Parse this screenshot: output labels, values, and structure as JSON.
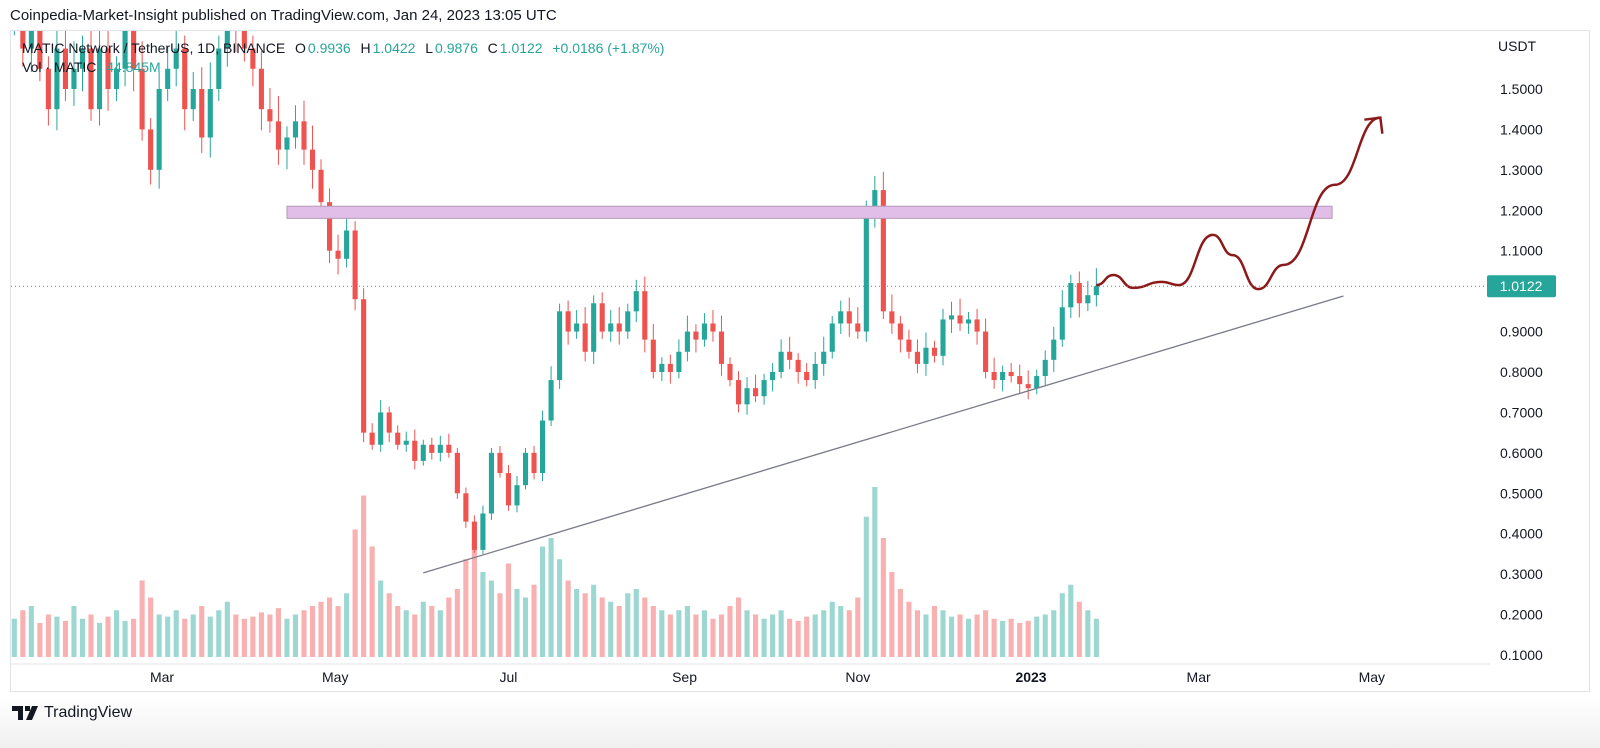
{
  "published": "Coinpedia-Market-Insight published on TradingView.com, Jan 24, 2023 13:05 UTC",
  "brand": "TradingView",
  "legend": {
    "symbol": "MATIC Network / TetherUS, 1D, BINANCE",
    "o_label": "O",
    "o": "0.9936",
    "h_label": "H",
    "h": "1.0422",
    "l_label": "L",
    "l": "0.9876",
    "c_label": "C",
    "c": "1.0122",
    "change": "+0.0186 (+1.87%)",
    "vol_label": "Vol · MATIC",
    "vol": "44.845M"
  },
  "colors": {
    "up": "#26a69a",
    "down": "#ef5350",
    "zone": "#e1bee7",
    "projection": "#8b1a1a",
    "trendline": "#787b86"
  },
  "chart_data": {
    "type": "candlestick",
    "currency": "USDT",
    "last_price": "1.0122",
    "ylim": [
      0.1,
      1.55
    ],
    "y_ticks": [
      "1.5000",
      "1.4000",
      "1.3000",
      "1.2000",
      "1.1000",
      "0.9000",
      "0.8000",
      "0.7000",
      "0.6000",
      "0.5000",
      "0.4000",
      "0.3000",
      "0.2000",
      "0.1000"
    ],
    "x_ticks": [
      {
        "label": "Mar",
        "date": "2022-03-01"
      },
      {
        "label": "May",
        "date": "2022-05-01"
      },
      {
        "label": "Jul",
        "date": "2022-07-01"
      },
      {
        "label": "Sep",
        "date": "2022-09-01"
      },
      {
        "label": "Nov",
        "date": "2022-11-01"
      },
      {
        "label": "2023",
        "date": "2023-01-01"
      },
      {
        "label": "Mar",
        "date": "2023-03-01"
      },
      {
        "label": "May",
        "date": "2023-05-01"
      }
    ],
    "start_date": "2022-01-08",
    "interval_days": 3,
    "close": [
      1.7,
      1.6,
      1.8,
      1.55,
      1.45,
      1.6,
      1.5,
      1.55,
      1.6,
      1.45,
      1.6,
      1.5,
      1.55,
      1.65,
      1.55,
      1.4,
      1.3,
      1.5,
      1.55,
      1.6,
      1.45,
      1.5,
      1.38,
      1.5,
      1.6,
      1.7,
      1.65,
      1.6,
      1.55,
      1.45,
      1.42,
      1.35,
      1.38,
      1.42,
      1.35,
      1.3,
      1.22,
      1.1,
      1.08,
      1.15,
      0.98,
      0.65,
      0.62,
      0.7,
      0.65,
      0.62,
      0.63,
      0.58,
      0.62,
      0.6,
      0.62,
      0.6,
      0.5,
      0.43,
      0.36,
      0.45,
      0.6,
      0.55,
      0.47,
      0.52,
      0.6,
      0.55,
      0.68,
      0.78,
      0.95,
      0.9,
      0.92,
      0.85,
      0.97,
      0.9,
      0.92,
      0.9,
      0.95,
      1.0,
      0.88,
      0.8,
      0.82,
      0.8,
      0.85,
      0.9,
      0.88,
      0.92,
      0.9,
      0.82,
      0.78,
      0.72,
      0.76,
      0.74,
      0.78,
      0.8,
      0.85,
      0.83,
      0.8,
      0.78,
      0.82,
      0.85,
      0.92,
      0.95,
      0.92,
      0.9,
      1.2,
      1.25,
      0.95,
      0.92,
      0.88,
      0.85,
      0.82,
      0.86,
      0.84,
      0.93,
      0.94,
      0.92,
      0.93,
      0.9,
      0.8,
      0.78,
      0.8,
      0.79,
      0.77,
      0.76,
      0.79,
      0.83,
      0.88,
      0.96,
      1.02,
      0.97,
      0.99,
      1.0122
    ],
    "volume_m": [
      90,
      110,
      120,
      80,
      100,
      95,
      85,
      120,
      90,
      100,
      80,
      95,
      110,
      85,
      90,
      180,
      140,
      100,
      95,
      110,
      90,
      100,
      120,
      95,
      110,
      130,
      100,
      90,
      95,
      105,
      100,
      115,
      90,
      100,
      110,
      120,
      130,
      140,
      120,
      150,
      300,
      380,
      260,
      180,
      150,
      120,
      110,
      100,
      130,
      120,
      110,
      140,
      160,
      230,
      270,
      200,
      180,
      150,
      220,
      160,
      140,
      170,
      260,
      280,
      230,
      180,
      160,
      150,
      170,
      140,
      130,
      120,
      150,
      160,
      140,
      120,
      110,
      100,
      110,
      120,
      100,
      110,
      90,
      100,
      120,
      140,
      110,
      100,
      90,
      100,
      110,
      90,
      85,
      95,
      100,
      110,
      130,
      120,
      110,
      140,
      330,
      400,
      280,
      200,
      160,
      130,
      110,
      100,
      120,
      110,
      95,
      100,
      90,
      100,
      110,
      90,
      85,
      90,
      80,
      85,
      95,
      100,
      110,
      150,
      170,
      130,
      110,
      90
    ],
    "annotations": {
      "resistance_zone": {
        "from": "2022-04-14",
        "to": "2023-04-17",
        "price_low": 1.18,
        "price_high": 1.21
      },
      "trendline": [
        {
          "date": "2022-06-01",
          "price": 0.303
        },
        {
          "date": "2023-04-21",
          "price": 0.988
        }
      ],
      "projection": [
        {
          "date": "2023-01-24",
          "price": 1.015
        },
        {
          "date": "2023-01-30",
          "price": 1.04
        },
        {
          "date": "2023-02-06",
          "price": 1.008
        },
        {
          "date": "2023-02-16",
          "price": 1.023
        },
        {
          "date": "2023-02-22",
          "price": 1.015
        },
        {
          "date": "2023-03-06",
          "price": 1.139
        },
        {
          "date": "2023-03-13",
          "price": 1.089
        },
        {
          "date": "2023-03-22",
          "price": 1.005
        },
        {
          "date": "2023-03-31",
          "price": 1.065
        },
        {
          "date": "2023-04-18",
          "price": 1.263
        },
        {
          "date": "2023-05-04",
          "price": 1.429
        }
      ]
    }
  }
}
